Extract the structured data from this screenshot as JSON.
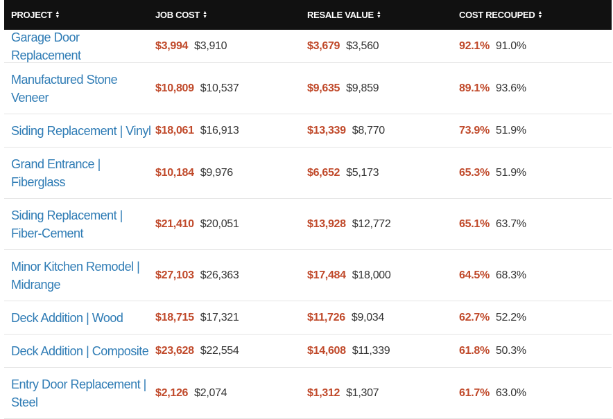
{
  "colors": {
    "header_bg": "#111111",
    "project_link": "#2f7cb5",
    "current_value": "#c0492a",
    "previous_value": "#333333"
  },
  "header": {
    "project": "PROJECT",
    "job_cost": "JOB COST",
    "resale_value": "RESALE VALUE",
    "cost_recouped": "COST RECOUPED",
    "sort_icon": "sort-up-down-icon"
  },
  "rows": [
    {
      "project": "Garage Door Replacement",
      "job_cost": "$3,994",
      "job_cost_prev": "$3,910",
      "resale": "$3,679",
      "resale_prev": "$3,560",
      "recouped": "92.1%",
      "recouped_prev": "91.0%"
    },
    {
      "project": "Manufactured Stone Veneer",
      "job_cost": "$10,809",
      "job_cost_prev": "$10,537",
      "resale": "$9,635",
      "resale_prev": "$9,859",
      "recouped": "89.1%",
      "recouped_prev": "93.6%"
    },
    {
      "project": "Siding Replacement | Vinyl",
      "job_cost": "$18,061",
      "job_cost_prev": "$16,913",
      "resale": "$13,339",
      "resale_prev": "$8,770",
      "recouped": "73.9%",
      "recouped_prev": "51.9%"
    },
    {
      "project": "Grand Entrance | Fiberglass",
      "job_cost": "$10,184",
      "job_cost_prev": "$9,976",
      "resale": "$6,652",
      "resale_prev": "$5,173",
      "recouped": "65.3%",
      "recouped_prev": "51.9%"
    },
    {
      "project": "Siding Replacement | Fiber-Cement",
      "job_cost": "$21,410",
      "job_cost_prev": "$20,051",
      "resale": "$13,928",
      "resale_prev": "$12,772",
      "recouped": "65.1%",
      "recouped_prev": "63.7%"
    },
    {
      "project": "Minor Kitchen Remodel | Midrange",
      "job_cost": "$27,103",
      "job_cost_prev": "$26,363",
      "resale": "$17,484",
      "resale_prev": "$18,000",
      "recouped": "64.5%",
      "recouped_prev": "68.3%"
    },
    {
      "project": "Deck Addition | Wood",
      "job_cost": "$18,715",
      "job_cost_prev": "$17,321",
      "resale": "$11,726",
      "resale_prev": "$9,034",
      "recouped": "62.7%",
      "recouped_prev": "52.2%"
    },
    {
      "project": "Deck Addition | Composite",
      "job_cost": "$23,628",
      "job_cost_prev": "$22,554",
      "resale": "$14,608",
      "resale_prev": "$11,339",
      "recouped": "61.8%",
      "recouped_prev": "50.3%"
    },
    {
      "project": "Entry Door Replacement | Steel",
      "job_cost": "$2,126",
      "job_cost_prev": "$2,074",
      "resale": "$1,312",
      "resale_prev": "$1,307",
      "recouped": "61.7%",
      "recouped_prev": "63.0%"
    }
  ]
}
